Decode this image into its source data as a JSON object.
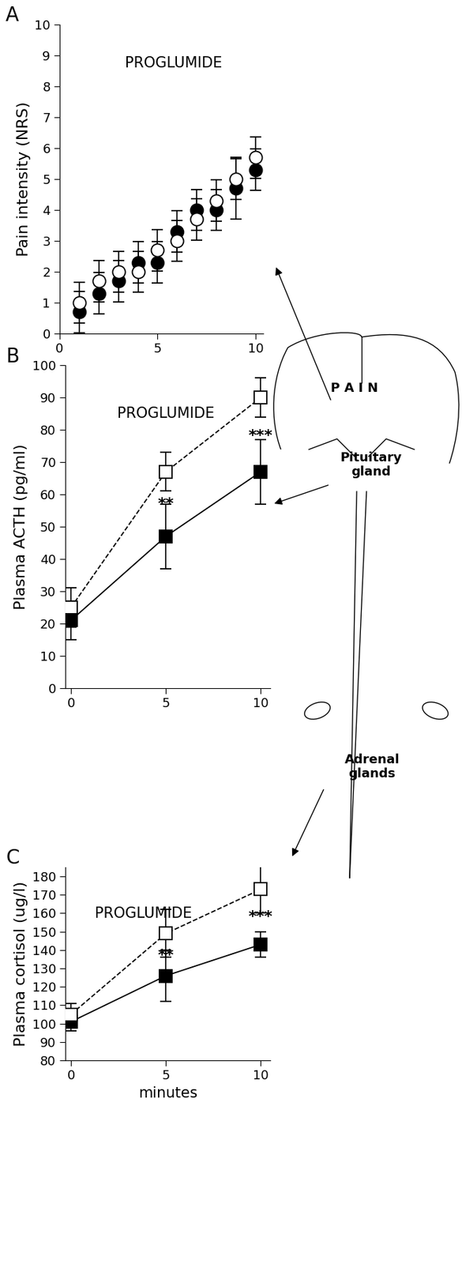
{
  "chart_data": [
    {
      "type": "scatter",
      "label": "A",
      "title": "PROGLUMIDE",
      "y_label": "Pain intensity (NRS)",
      "x": [
        1,
        2,
        3,
        4,
        5,
        6,
        7,
        8,
        9,
        10
      ],
      "series": [
        {
          "color": "#000000",
          "marker": "o",
          "line_style": "none",
          "values": [
            0.7,
            1.3,
            1.7,
            2.3,
            2.3,
            3.3,
            4.0,
            4.0,
            4.7,
            5.3
          ],
          "error": [
            0.67,
            0.67,
            0.67,
            0.67,
            0.67,
            0.67,
            0.67,
            0.67,
            1.0,
            0.67
          ]
        },
        {
          "color": "#ffffff",
          "marker": "o",
          "line_style": "none",
          "values": [
            1.0,
            1.7,
            2.0,
            2.0,
            2.7,
            3.0,
            3.7,
            4.3,
            5.0,
            5.7
          ],
          "error": [
            0.67,
            0.67,
            0.67,
            0.67,
            0.67,
            0.67,
            0.67,
            0.67,
            0.67,
            0.67
          ]
        }
      ],
      "xlim": [
        0,
        10.4
      ],
      "xticks": [
        0,
        5,
        10
      ],
      "ylim": [
        0,
        10
      ],
      "yticks": [
        0,
        1,
        2,
        3,
        4,
        5,
        6,
        7,
        8,
        9,
        10
      ]
    },
    {
      "type": "line",
      "label": "B",
      "title": "PROGLUMIDE",
      "y_label": "Plasma ACTH (pg/ml)",
      "x": [
        0,
        5,
        10
      ],
      "series": [
        {
          "color": "#000000",
          "marker": "s",
          "line_style": "solid",
          "values": [
            21,
            47,
            67
          ],
          "error": [
            6,
            10,
            10
          ]
        },
        {
          "color": "#ffffff",
          "marker": "s",
          "line_style": "dashed",
          "values": [
            25,
            67,
            90
          ],
          "error": [
            6,
            6,
            6
          ]
        }
      ],
      "annotations": [
        {
          "text": "**",
          "x": 5,
          "y": 57
        },
        {
          "text": "***",
          "x": 10,
          "y": 78
        }
      ],
      "xlim": [
        -0.3,
        10.5
      ],
      "xticks": [
        0,
        5,
        10
      ],
      "ylim": [
        0,
        100
      ],
      "yticks": [
        0,
        10,
        20,
        30,
        40,
        50,
        60,
        70,
        80,
        90,
        100
      ]
    },
    {
      "type": "line",
      "label": "C",
      "title": "PROGLUMIDE",
      "y_label": "Plasma cortisol (ug/l)",
      "x_label": "minutes",
      "x": [
        0,
        5,
        10
      ],
      "series": [
        {
          "color": "#000000",
          "marker": "s",
          "line_style": "solid",
          "values": [
            101,
            126,
            143
          ],
          "error": [
            5,
            14,
            7
          ]
        },
        {
          "color": "#ffffff",
          "marker": "s",
          "line_style": "dashed",
          "values": [
            105,
            149,
            173
          ],
          "error": [
            6,
            13,
            13
          ]
        }
      ],
      "annotations": [
        {
          "text": "**",
          "x": 5,
          "y": 137
        },
        {
          "text": "***",
          "x": 10,
          "y": 158
        }
      ],
      "xlim": [
        -0.3,
        10.5
      ],
      "xticks": [
        0,
        5,
        10
      ],
      "ylim": [
        80,
        185
      ],
      "yticks": [
        80,
        90,
        100,
        110,
        120,
        130,
        140,
        150,
        160,
        170,
        180
      ]
    }
  ],
  "diagram": {
    "labels": [
      "P A I N",
      "Pituitary\ngland",
      "Adrenal\nglands"
    ]
  }
}
